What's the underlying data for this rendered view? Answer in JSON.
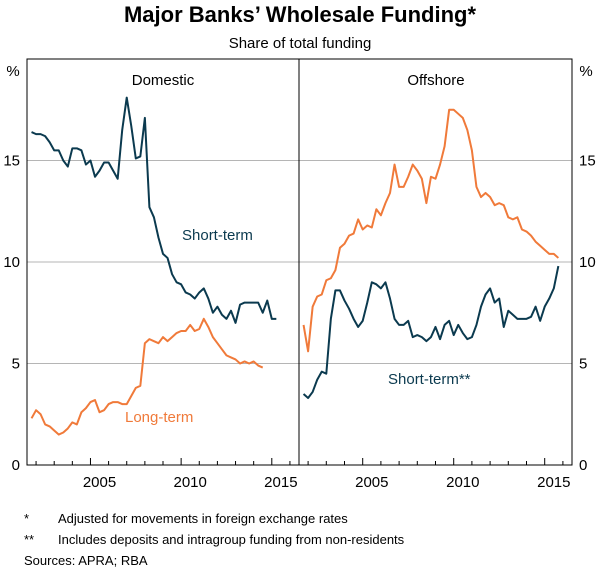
{
  "chart_data": {
    "type": "line",
    "title": "Major Banks’ Wholesale Funding*",
    "subtitle": "Share of total funding",
    "y_unit_left": "%",
    "y_unit_right": "%",
    "ylim": [
      0,
      20
    ],
    "yticks": [
      "0",
      "5",
      "10",
      "15"
    ],
    "xlim": [
      2001.5,
      2016.5
    ],
    "xticks": [
      "2005",
      "2010",
      "2015"
    ],
    "grid": true,
    "panels": [
      {
        "name": "Domestic",
        "series": [
          {
            "name": "Short-term",
            "color": "#0b3a4f",
            "x": [
              2001.75,
              2002.0,
              2002.25,
              2002.5,
              2002.75,
              2003.0,
              2003.25,
              2003.5,
              2003.75,
              2004.0,
              2004.25,
              2004.5,
              2004.75,
              2005.0,
              2005.25,
              2005.5,
              2005.75,
              2006.0,
              2006.25,
              2006.5,
              2006.75,
              2007.0,
              2007.25,
              2007.5,
              2007.75,
              2008.0,
              2008.25,
              2008.5,
              2008.75,
              2009.0,
              2009.25,
              2009.5,
              2009.75,
              2010.0,
              2010.25,
              2010.5,
              2010.75,
              2011.0,
              2011.25,
              2011.5,
              2011.75,
              2012.0,
              2012.25,
              2012.5,
              2012.75,
              2013.0,
              2013.25,
              2013.5,
              2013.75,
              2014.0,
              2014.25,
              2014.5,
              2014.75,
              2015.0,
              2015.25,
              2015.5,
              2015.75
            ],
            "y": [
              16.4,
              16.3,
              16.3,
              16.2,
              15.9,
              15.5,
              15.5,
              15.0,
              14.7,
              15.6,
              15.6,
              15.5,
              14.8,
              15.0,
              14.2,
              14.5,
              14.9,
              14.9,
              14.5,
              14.1,
              16.5,
              18.1,
              16.7,
              15.1,
              15.2,
              17.1,
              12.7,
              12.2,
              11.2,
              10.4,
              10.2,
              9.4,
              9.0,
              8.9,
              8.5,
              8.4,
              8.2,
              8.5,
              8.7,
              8.2,
              7.5,
              7.8,
              7.4,
              7.2,
              7.6,
              7.0,
              7.9,
              8.0,
              8.0,
              8.0,
              8.0,
              7.5,
              8.1,
              7.2,
              7.2,
              null,
              null
            ]
          },
          {
            "name": "Long-term",
            "color": "#f07a3a",
            "x": [
              2001.75,
              2002.0,
              2002.25,
              2002.5,
              2002.75,
              2003.0,
              2003.25,
              2003.5,
              2003.75,
              2004.0,
              2004.25,
              2004.5,
              2004.75,
              2005.0,
              2005.25,
              2005.5,
              2005.75,
              2006.0,
              2006.25,
              2006.5,
              2006.75,
              2007.0,
              2007.25,
              2007.5,
              2007.75,
              2008.0,
              2008.25,
              2008.5,
              2008.75,
              2009.0,
              2009.25,
              2009.5,
              2009.75,
              2010.0,
              2010.25,
              2010.5,
              2010.75,
              2011.0,
              2011.25,
              2011.5,
              2011.75,
              2012.0,
              2012.25,
              2012.5,
              2012.75,
              2013.0,
              2013.25,
              2013.5,
              2013.75,
              2014.0,
              2014.25,
              2014.5,
              2014.75,
              2015.0,
              2015.25,
              2015.5,
              2015.75
            ],
            "y": [
              2.3,
              2.7,
              2.5,
              2.0,
              1.9,
              1.7,
              1.5,
              1.6,
              1.8,
              2.1,
              2.0,
              2.6,
              2.8,
              3.1,
              3.2,
              2.6,
              2.7,
              3.0,
              3.1,
              3.1,
              3.0,
              3.0,
              3.4,
              3.8,
              3.9,
              6.0,
              6.2,
              6.1,
              6.0,
              6.3,
              6.1,
              6.3,
              6.5,
              6.6,
              6.6,
              6.9,
              6.6,
              6.7,
              7.2,
              6.8,
              6.3,
              6.0,
              5.7,
              5.4,
              5.3,
              5.2,
              5.0,
              5.1,
              5.0,
              5.1,
              4.9,
              4.8,
              null,
              null,
              null,
              null,
              null
            ]
          }
        ]
      },
      {
        "name": "Offshore",
        "series": [
          {
            "name": "Short-term**",
            "color": "#0b3a4f",
            "x": [
              2001.75,
              2002.0,
              2002.25,
              2002.5,
              2002.75,
              2003.0,
              2003.25,
              2003.5,
              2003.75,
              2004.0,
              2004.25,
              2004.5,
              2004.75,
              2005.0,
              2005.25,
              2005.5,
              2005.75,
              2006.0,
              2006.25,
              2006.5,
              2006.75,
              2007.0,
              2007.25,
              2007.5,
              2007.75,
              2008.0,
              2008.25,
              2008.5,
              2008.75,
              2009.0,
              2009.25,
              2009.5,
              2009.75,
              2010.0,
              2010.25,
              2010.5,
              2010.75,
              2011.0,
              2011.25,
              2011.5,
              2011.75,
              2012.0,
              2012.25,
              2012.5,
              2012.75,
              2013.0,
              2013.25,
              2013.5,
              2013.75,
              2014.0,
              2014.25,
              2014.5,
              2014.75,
              2015.0,
              2015.25,
              2015.5,
              2015.75
            ],
            "y": [
              3.5,
              3.3,
              3.6,
              4.2,
              4.6,
              4.5,
              7.2,
              8.6,
              8.6,
              8.1,
              7.7,
              7.2,
              6.8,
              7.1,
              8.0,
              9.0,
              8.9,
              8.7,
              9.0,
              8.2,
              7.2,
              6.9,
              6.9,
              7.1,
              6.3,
              6.4,
              6.3,
              6.1,
              6.3,
              6.8,
              6.2,
              6.9,
              7.1,
              6.4,
              6.9,
              6.5,
              6.2,
              6.3,
              6.9,
              7.8,
              8.4,
              8.7,
              8.0,
              8.2,
              6.8,
              7.6,
              7.4,
              7.2,
              7.2,
              7.2,
              7.3,
              7.8,
              7.1,
              7.8,
              8.2,
              8.7,
              9.8
            ]
          },
          {
            "name": "",
            "color": "#f07a3a",
            "x": [
              2001.75,
              2002.0,
              2002.25,
              2002.5,
              2002.75,
              2003.0,
              2003.25,
              2003.5,
              2003.75,
              2004.0,
              2004.25,
              2004.5,
              2004.75,
              2005.0,
              2005.25,
              2005.5,
              2005.75,
              2006.0,
              2006.25,
              2006.5,
              2006.75,
              2007.0,
              2007.25,
              2007.5,
              2007.75,
              2008.0,
              2008.25,
              2008.5,
              2008.75,
              2009.0,
              2009.25,
              2009.5,
              2009.75,
              2010.0,
              2010.25,
              2010.5,
              2010.75,
              2011.0,
              2011.25,
              2011.5,
              2011.75,
              2012.0,
              2012.25,
              2012.5,
              2012.75,
              2013.0,
              2013.25,
              2013.5,
              2013.75,
              2014.0,
              2014.25,
              2014.5,
              2014.75,
              2015.0,
              2015.25,
              2015.5,
              2015.75
            ],
            "y": [
              6.9,
              5.6,
              7.8,
              8.3,
              8.4,
              9.1,
              9.2,
              9.6,
              10.7,
              10.9,
              11.3,
              11.4,
              12.1,
              11.6,
              11.8,
              11.7,
              12.6,
              12.3,
              12.9,
              13.4,
              14.8,
              13.7,
              13.7,
              14.2,
              14.8,
              14.5,
              14.1,
              12.9,
              14.2,
              14.1,
              14.8,
              15.7,
              17.5,
              17.5,
              17.3,
              17.1,
              16.5,
              15.5,
              13.7,
              13.2,
              13.4,
              13.2,
              12.8,
              12.9,
              12.8,
              12.2,
              12.1,
              12.2,
              11.6,
              11.5,
              11.3,
              11.0,
              10.8,
              10.6,
              10.4,
              10.4,
              10.2
            ]
          }
        ]
      }
    ],
    "annotations": [
      "Short-term",
      "Long-term",
      "Short-term**"
    ]
  },
  "footnotes": [
    {
      "mark": "*",
      "text": "Adjusted for movements in foreign exchange rates"
    },
    {
      "mark": "**",
      "text": "Includes deposits and intragroup funding from non-residents"
    }
  ],
  "sources": "Sources:   APRA; RBA"
}
